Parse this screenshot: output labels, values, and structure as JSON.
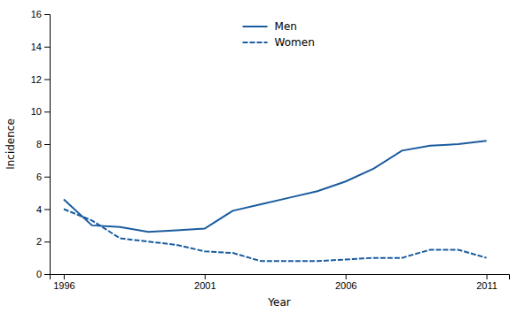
{
  "chart_data": {
    "type": "line",
    "x": [
      1996,
      1997,
      1998,
      1999,
      2000,
      2001,
      2002,
      2003,
      2004,
      2005,
      2006,
      2007,
      2008,
      2009,
      2010,
      2011
    ],
    "series": [
      {
        "name": "Men",
        "color": "#1a5c9e",
        "line_style": "solid",
        "values": [
          4.6,
          3.0,
          2.9,
          2.6,
          2.7,
          2.8,
          3.9,
          4.3,
          4.7,
          5.1,
          5.7,
          6.5,
          7.6,
          7.9,
          8.0,
          8.2
        ]
      },
      {
        "name": "Women",
        "color": "#1a5c9e",
        "line_style": "dashed",
        "values": [
          4.0,
          3.3,
          2.2,
          2.0,
          1.8,
          1.4,
          1.3,
          0.8,
          0.8,
          0.8,
          0.9,
          1.0,
          1.0,
          1.5,
          1.5,
          1.0
        ]
      }
    ],
    "xlabel": "Year",
    "ylabel": "Incidence",
    "xlim": [
      1995.5,
      2011.8
    ],
    "xticks": [
      1996,
      2001,
      2006,
      2011
    ],
    "ylim": [
      0,
      16
    ],
    "yticks": [
      0,
      2,
      4,
      6,
      8,
      10,
      12,
      14,
      16
    ],
    "grid": false,
    "legend": "top"
  }
}
